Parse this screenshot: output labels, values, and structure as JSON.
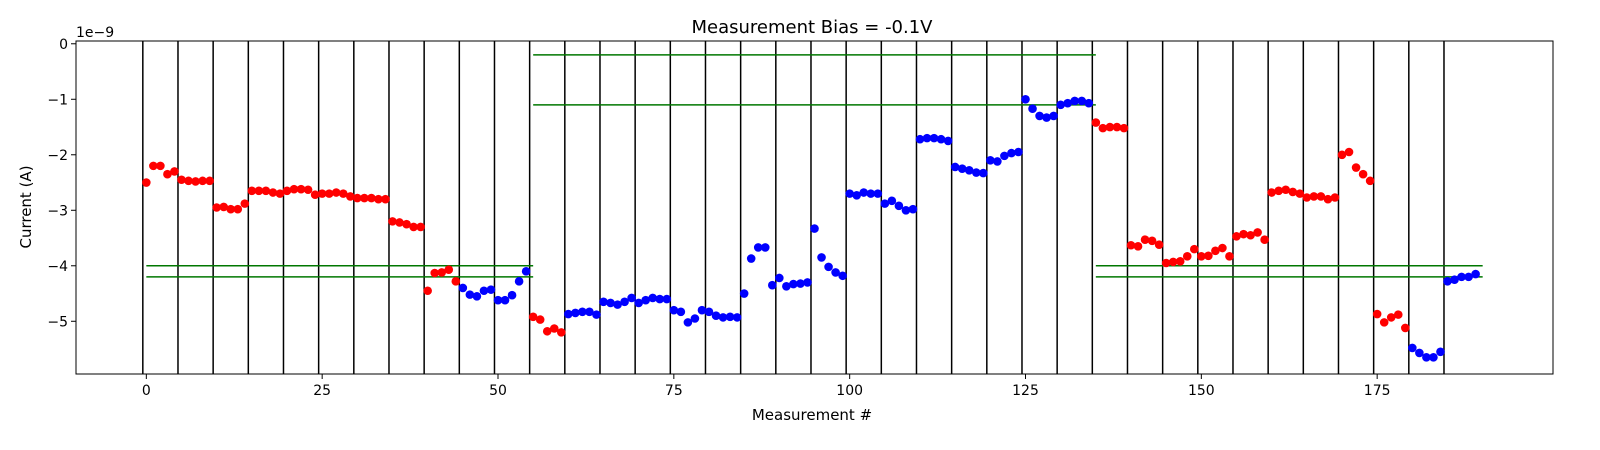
{
  "chart_data": {
    "type": "scatter",
    "title": "Measurement Bias = -0.1V",
    "xlabel": "Measurement #",
    "ylabel": "Current (A)",
    "y_scale_label": "1e−9",
    "xlim": [
      -10,
      200
    ],
    "ylim": [
      -5.95,
      0.05
    ],
    "x_ticks": [
      0,
      25,
      50,
      75,
      100,
      125,
      150,
      175
    ],
    "y_ticks": [
      0,
      -1,
      -2,
      -3,
      -4,
      -5
    ],
    "x_tick_labels": [
      "0",
      "25",
      "50",
      "75",
      "100",
      "125",
      "150",
      "175"
    ],
    "y_tick_labels": [
      "0",
      "−1",
      "−2",
      "−3",
      "−4",
      "−5"
    ],
    "grid": false,
    "colors": {
      "red": "#ff0000",
      "blue": "#0000ff",
      "threshold": "#007700",
      "segment": "#000000"
    },
    "segment_boundaries": [
      -0.5,
      4.5,
      9.5,
      14.5,
      19.5,
      24.5,
      29.5,
      34.5,
      39.5,
      44.5,
      49.5,
      54.5,
      59.5,
      64.5,
      69.5,
      74.5,
      79.5,
      84.5,
      89.5,
      94.5,
      99.5,
      104.5,
      109.5,
      114.5,
      119.5,
      124.5,
      129.5,
      134.5,
      139.5,
      144.5,
      149.5,
      154.5,
      159.5,
      164.5,
      169.5,
      174.5,
      179.5,
      184.5
    ],
    "threshold_lines": [
      {
        "x_start": 0,
        "x_end": 55,
        "y": -4.0
      },
      {
        "x_start": 0,
        "x_end": 55,
        "y": -4.2
      },
      {
        "x_start": 55,
        "x_end": 135,
        "y": -0.2
      },
      {
        "x_start": 55,
        "x_end": 135,
        "y": -1.1
      },
      {
        "x_start": 135,
        "x_end": 190,
        "y": -4.0
      },
      {
        "x_start": 135,
        "x_end": 190,
        "y": -4.2
      }
    ],
    "series": [
      {
        "color": "red",
        "x": [
          0,
          1,
          2,
          3,
          4,
          5,
          6,
          7,
          8,
          9,
          10,
          11,
          12,
          13,
          14,
          15,
          16,
          17,
          18,
          19,
          20,
          21,
          22,
          23,
          24,
          25,
          26,
          27,
          28,
          29,
          30,
          31,
          32,
          33,
          34,
          35,
          36,
          37,
          38,
          39,
          40,
          41,
          42,
          43,
          44,
          55,
          56,
          57,
          58,
          59,
          135,
          136,
          137,
          138,
          139,
          140,
          141,
          142,
          143,
          144,
          145,
          146,
          147,
          148,
          149,
          150,
          151,
          152,
          153,
          154,
          155,
          156,
          157,
          158,
          159,
          160,
          161,
          162,
          163,
          164,
          165,
          166,
          167,
          168,
          169,
          170,
          171,
          172,
          173,
          174,
          175,
          176,
          177,
          178,
          179
        ],
        "y": [
          -2.5,
          -2.2,
          -2.2,
          -2.35,
          -2.3,
          -2.45,
          -2.47,
          -2.48,
          -2.47,
          -2.47,
          -2.95,
          -2.94,
          -2.98,
          -2.98,
          -2.88,
          -2.65,
          -2.65,
          -2.65,
          -2.68,
          -2.7,
          -2.65,
          -2.62,
          -2.62,
          -2.63,
          -2.72,
          -2.7,
          -2.7,
          -2.68,
          -2.7,
          -2.75,
          -2.78,
          -2.78,
          -2.78,
          -2.8,
          -2.8,
          -3.2,
          -3.22,
          -3.25,
          -3.3,
          -3.3,
          -4.45,
          -4.13,
          -4.12,
          -4.07,
          -4.28,
          -4.92,
          -4.97,
          -5.18,
          -5.13,
          -5.2,
          -1.42,
          -1.52,
          -1.5,
          -1.5,
          -1.52,
          -3.63,
          -3.65,
          -3.53,
          -3.55,
          -3.62,
          -3.95,
          -3.93,
          -3.92,
          -3.83,
          -3.7,
          -3.83,
          -3.82,
          -3.73,
          -3.68,
          -3.83,
          -3.47,
          -3.43,
          -3.45,
          -3.4,
          -3.53,
          -2.68,
          -2.65,
          -2.63,
          -2.67,
          -2.7,
          -2.77,
          -2.75,
          -2.75,
          -2.8,
          -2.77,
          -2.0,
          -1.95,
          -2.23,
          -2.35,
          -2.47,
          -4.87,
          -5.02,
          -4.93,
          -4.88,
          -5.12
        ]
      },
      {
        "color": "blue",
        "x": [
          45,
          46,
          47,
          48,
          49,
          50,
          51,
          52,
          53,
          54,
          60,
          61,
          62,
          63,
          64,
          65,
          66,
          67,
          68,
          69,
          70,
          71,
          72,
          73,
          74,
          75,
          76,
          77,
          78,
          79,
          80,
          81,
          82,
          83,
          84,
          85,
          86,
          87,
          88,
          89,
          90,
          91,
          92,
          93,
          94,
          95,
          96,
          97,
          98,
          99,
          100,
          101,
          102,
          103,
          104,
          105,
          106,
          107,
          108,
          109,
          110,
          111,
          112,
          113,
          114,
          115,
          116,
          117,
          118,
          119,
          120,
          121,
          122,
          123,
          124,
          125,
          126,
          127,
          128,
          129,
          130,
          131,
          132,
          133,
          134,
          180,
          181,
          182,
          183,
          184,
          185,
          186,
          187,
          188,
          189
        ],
        "y": [
          -4.4,
          -4.52,
          -4.55,
          -4.45,
          -4.43,
          -4.62,
          -4.62,
          -4.53,
          -4.28,
          -4.1,
          -4.87,
          -4.85,
          -4.83,
          -4.83,
          -4.88,
          -4.65,
          -4.67,
          -4.7,
          -4.65,
          -4.58,
          -4.67,
          -4.62,
          -4.58,
          -4.6,
          -4.6,
          -4.8,
          -4.83,
          -5.02,
          -4.95,
          -4.8,
          -4.83,
          -4.9,
          -4.93,
          -4.92,
          -4.93,
          -4.5,
          -3.87,
          -3.67,
          -3.67,
          -4.35,
          -4.22,
          -4.37,
          -4.33,
          -4.32,
          -4.3,
          -3.33,
          -3.85,
          -4.02,
          -4.12,
          -4.18,
          -2.7,
          -2.73,
          -2.68,
          -2.7,
          -2.7,
          -2.88,
          -2.83,
          -2.92,
          -3.0,
          -2.98,
          -1.72,
          -1.7,
          -1.7,
          -1.72,
          -1.75,
          -2.22,
          -2.25,
          -2.28,
          -2.32,
          -2.33,
          -2.1,
          -2.12,
          -2.02,
          -1.97,
          -1.95,
          -1.0,
          -1.17,
          -1.3,
          -1.33,
          -1.3,
          -1.1,
          -1.07,
          -1.03,
          -1.03,
          -1.07,
          -5.48,
          -5.57,
          -5.65,
          -5.65,
          -5.55,
          -4.28,
          -4.25,
          -4.2,
          -4.2,
          -4.15
        ]
      }
    ]
  }
}
